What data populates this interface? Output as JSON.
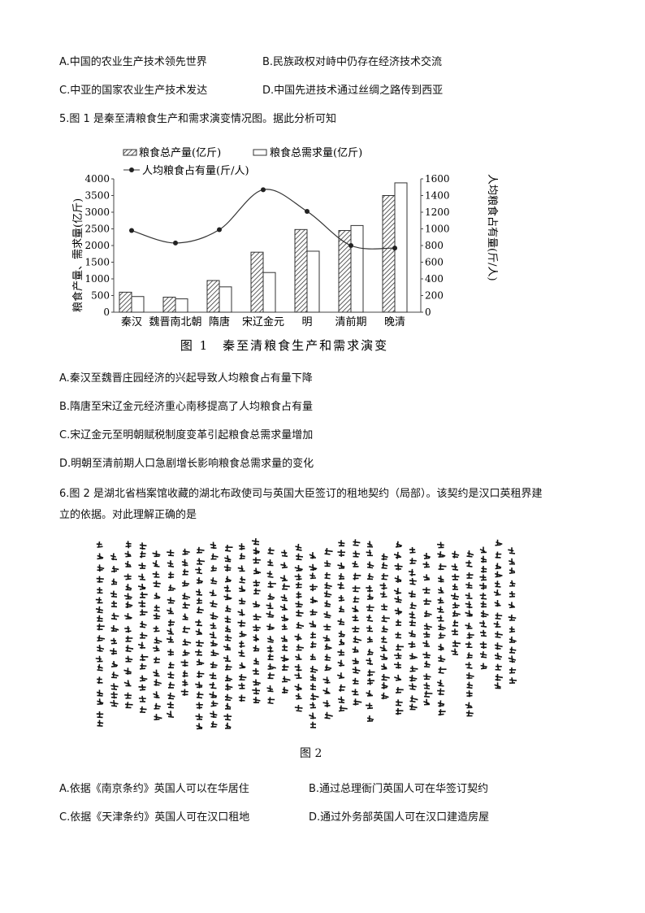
{
  "q4_options": {
    "A": "A.中国的农业生产技术领先世界",
    "B": "B.民族政权对峙中仍存在经济技术交流",
    "C": "C.中亚的国家农业生产技术发达",
    "D": "D.中国先进技术通过丝绸之路传到西亚"
  },
  "q5": {
    "stem": "5.图 1 是秦至清粮食生产和需求演变情况图。据此分析可知",
    "options": [
      "A.秦汉至魏晋庄园经济的兴起导致人均粮食占有量下降",
      "B.隋唐至宋辽金元经济重心南移提高了人均粮食占有量",
      "C.宋辽金元至明朝赋税制度变革引起粮食总需求量增加",
      "D.明朝至清前期人口急剧增长影响粮食总需求量的变化"
    ]
  },
  "chart_data": {
    "type": "bar",
    "title": "图 1　秦至清粮食生产和需求演变",
    "categories": [
      "秦汉",
      "魏晋南北朝",
      "隋唐",
      "宋辽金元",
      "明",
      "清前期",
      "晚清"
    ],
    "ylabel": "粮食产量、需求量(亿斤)",
    "ylabel_right": "人均粮食占有量(斤/人)",
    "ylim": [
      0,
      4000
    ],
    "yticks": [
      0,
      500,
      1000,
      1500,
      2000,
      2500,
      3000,
      3500,
      4000
    ],
    "ylim_right": [
      0,
      1600
    ],
    "yticks_right": [
      0,
      200,
      400,
      600,
      800,
      1000,
      1200,
      1400,
      1600
    ],
    "series": [
      {
        "name": "粮食总产量(亿斤)",
        "type": "bar",
        "pattern": "hatched",
        "values": [
          600,
          450,
          950,
          1800,
          2480,
          2450,
          3500
        ]
      },
      {
        "name": "粮食总需求量(亿斤)",
        "type": "bar",
        "pattern": "empty",
        "values": [
          470,
          400,
          760,
          1190,
          1830,
          2600,
          3880
        ]
      },
      {
        "name": "人均粮食占有量(斤/人)",
        "type": "line",
        "axis": "right",
        "values": [
          980,
          830,
          990,
          1470,
          1210,
          800,
          770
        ]
      }
    ],
    "legend": "top"
  },
  "q6": {
    "stem1": "6.图 2 是湖北省档案馆收藏的湖北布政使司与英国大臣签订的租地契约（局部）。该契约是汉口英租界建",
    "stem2": "立的依据。对此理解正确的是",
    "figure_caption": "图 2",
    "options": {
      "A": "A.依据《南京条约》英国人可以在华居住",
      "B": "B.通过总理衙门英国人可在华签订契约",
      "C": "C.依据《天津条约》英国人可在汉口租地",
      "D": "D.通过外务部英国人可在汉口建造房屋"
    }
  }
}
